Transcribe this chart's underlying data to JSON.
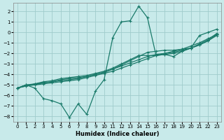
{
  "xlabel": "Humidex (Indice chaleur)",
  "xlim": [
    -0.5,
    23.5
  ],
  "ylim": [
    -8.5,
    2.8
  ],
  "xticks": [
    0,
    1,
    2,
    3,
    4,
    5,
    6,
    7,
    8,
    9,
    10,
    11,
    12,
    13,
    14,
    15,
    16,
    17,
    18,
    19,
    20,
    21,
    22,
    23
  ],
  "yticks": [
    -8,
    -7,
    -6,
    -5,
    -4,
    -3,
    -2,
    -1,
    0,
    1,
    2
  ],
  "bg_color": "#c8eaea",
  "grid_color": "#a0cccc",
  "line_color": "#1a7a6a",
  "lines": [
    {
      "x": [
        0,
        1,
        2,
        3,
        4,
        5,
        6,
        7,
        8,
        9,
        10,
        11,
        12,
        13,
        14,
        15,
        16,
        17,
        18,
        19,
        20,
        21,
        22,
        23
      ],
      "y": [
        -5.3,
        -5.0,
        -5.3,
        -6.3,
        -6.5,
        -6.8,
        -8.1,
        -6.8,
        -7.8,
        -5.6,
        -4.5,
        -0.5,
        1.0,
        1.1,
        2.5,
        1.4,
        -2.2,
        -2.1,
        -2.3,
        -1.8,
        -1.5,
        -0.3,
        0.0,
        0.3
      ]
    },
    {
      "x": [
        0,
        1,
        2,
        3,
        4,
        5,
        6,
        7,
        8,
        9,
        10,
        11,
        12,
        13,
        14,
        15,
        16,
        17,
        18,
        19,
        20,
        21,
        22,
        23
      ],
      "y": [
        -5.3,
        -5.0,
        -5.0,
        -4.8,
        -4.7,
        -4.6,
        -4.5,
        -4.4,
        -4.2,
        -4.0,
        -3.8,
        -3.5,
        -3.2,
        -2.9,
        -2.6,
        -2.3,
        -2.1,
        -2.0,
        -1.9,
        -1.7,
        -1.5,
        -1.2,
        -0.8,
        -0.3
      ]
    },
    {
      "x": [
        0,
        1,
        2,
        3,
        4,
        5,
        6,
        7,
        8,
        9,
        10,
        11,
        12,
        13,
        14,
        15,
        16,
        17,
        18,
        19,
        20,
        21,
        22,
        23
      ],
      "y": [
        -5.3,
        -5.1,
        -5.0,
        -4.9,
        -4.8,
        -4.7,
        -4.6,
        -4.5,
        -4.3,
        -4.1,
        -3.9,
        -3.7,
        -3.4,
        -3.1,
        -2.8,
        -2.5,
        -2.2,
        -2.0,
        -1.8,
        -1.6,
        -1.3,
        -1.0,
        -0.6,
        -0.2
      ]
    },
    {
      "x": [
        0,
        1,
        2,
        3,
        4,
        5,
        6,
        7,
        8,
        9,
        10,
        11,
        12,
        13,
        14,
        15,
        16,
        17,
        18,
        19,
        20,
        21,
        22,
        23
      ],
      "y": [
        -5.3,
        -5.1,
        -4.9,
        -4.8,
        -4.7,
        -4.5,
        -4.4,
        -4.3,
        -4.2,
        -4.0,
        -3.8,
        -3.5,
        -3.1,
        -2.7,
        -2.3,
        -1.9,
        -1.8,
        -1.7,
        -1.7,
        -1.6,
        -1.5,
        -1.2,
        -0.8,
        -0.2
      ]
    },
    {
      "x": [
        0,
        1,
        2,
        3,
        4,
        5,
        6,
        7,
        8,
        9,
        10,
        11,
        12,
        13,
        14,
        15,
        16,
        17,
        18,
        19,
        20,
        21,
        22,
        23
      ],
      "y": [
        -5.3,
        -5.0,
        -4.9,
        -4.7,
        -4.6,
        -4.4,
        -4.3,
        -4.2,
        -4.1,
        -3.9,
        -3.7,
        -3.4,
        -3.0,
        -2.6,
        -2.2,
        -2.2,
        -2.2,
        -2.1,
        -2.0,
        -1.8,
        -1.5,
        -1.1,
        -0.7,
        -0.1
      ]
    }
  ]
}
